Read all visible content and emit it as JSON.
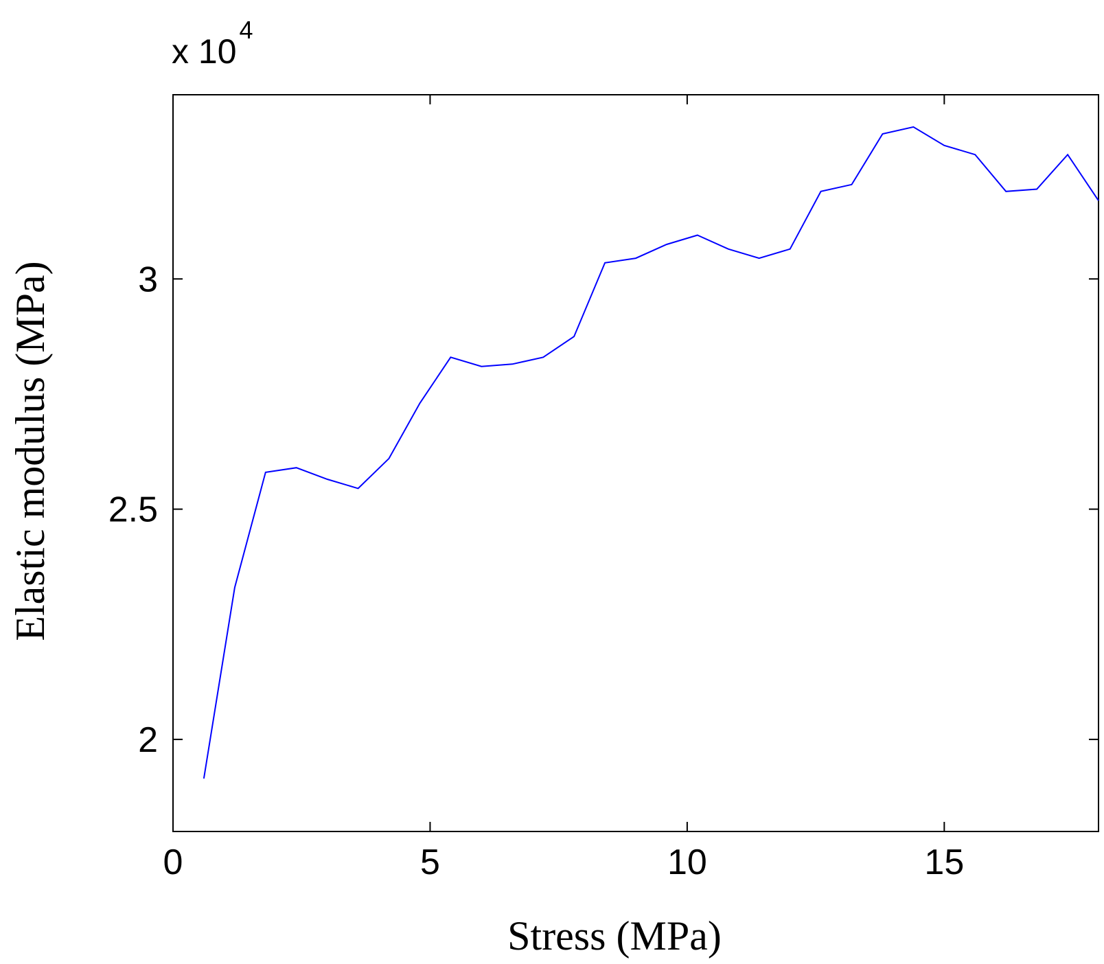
{
  "chart_data": {
    "type": "line",
    "title": "",
    "xlabel": "Stress (MPa)",
    "ylabel": "Elastic modulus (MPa)",
    "y_multiplier": {
      "base": "x 10",
      "exponent": "4"
    },
    "xlim": [
      0,
      18
    ],
    "ylim": [
      1.8,
      3.4
    ],
    "x_ticks": [
      0,
      5,
      10,
      15
    ],
    "x_tick_labels": [
      "0",
      "5",
      "10",
      "15"
    ],
    "y_ticks": [
      2,
      2.5,
      3
    ],
    "y_tick_labels": [
      "2",
      "2.5",
      "3"
    ],
    "grid": false,
    "legend": "none",
    "line_color": "#0000ff",
    "series": [
      {
        "x": [
          0.6,
          1.2,
          1.8,
          2.4,
          3.0,
          3.6,
          4.2,
          4.8,
          5.4,
          6.0,
          6.6,
          7.2,
          7.8,
          8.4,
          9.0,
          9.6,
          10.2,
          10.8,
          11.4,
          12.0,
          12.6,
          13.2,
          13.8,
          14.4,
          15.0,
          15.6,
          16.2,
          16.8,
          17.4,
          18.0
        ],
        "y": [
          1.915,
          2.33,
          2.58,
          2.59,
          2.565,
          2.545,
          2.61,
          2.73,
          2.83,
          2.81,
          2.815,
          2.83,
          2.875,
          3.035,
          3.045,
          3.075,
          3.095,
          3.065,
          3.045,
          3.065,
          3.19,
          3.205,
          3.315,
          3.33,
          3.29,
          3.27,
          3.19,
          3.195,
          3.27,
          3.17
        ]
      }
    ]
  }
}
